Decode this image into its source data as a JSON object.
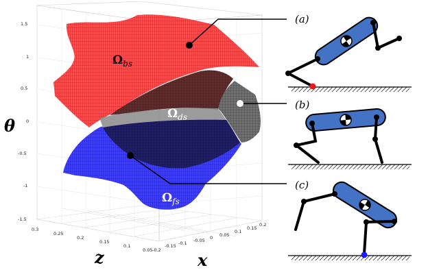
{
  "plot": {
    "axis_labels": {
      "theta": "θ",
      "z": "z",
      "x": "x"
    },
    "theta_ticks": [
      "1.5",
      "1",
      "0.5",
      "0",
      "-0.5",
      "-1",
      "-1.5"
    ],
    "z_ticks": [
      "0.3",
      "0.25",
      "0.2",
      "0.15",
      "0.1",
      "0.05"
    ],
    "x_ticks": [
      "-0.2",
      "-0.15",
      "-0.1",
      "-0.05",
      "0",
      "0.05",
      "0.1",
      "0.15",
      "0.2"
    ],
    "regions": [
      {
        "id": "bs",
        "symbol": "Ω",
        "subscript": "bs",
        "color": "#ff2a2a"
      },
      {
        "id": "ds",
        "symbol": "Ω",
        "subscript": "ds",
        "color": "#555555"
      },
      {
        "id": "fs",
        "symbol": "Ω",
        "subscript": "fs",
        "color": "#2a2aff"
      }
    ]
  },
  "panels": [
    {
      "id": "a",
      "label": "(a)",
      "contact": "rear",
      "contact_color": "#e8181d"
    },
    {
      "id": "b",
      "label": "(b)",
      "contact": "both"
    },
    {
      "id": "c",
      "label": "(c)",
      "contact": "front",
      "contact_color": "#1a1aff"
    }
  ],
  "colors": {
    "robot_body": "#4472c4",
    "legs": "#000000"
  }
}
